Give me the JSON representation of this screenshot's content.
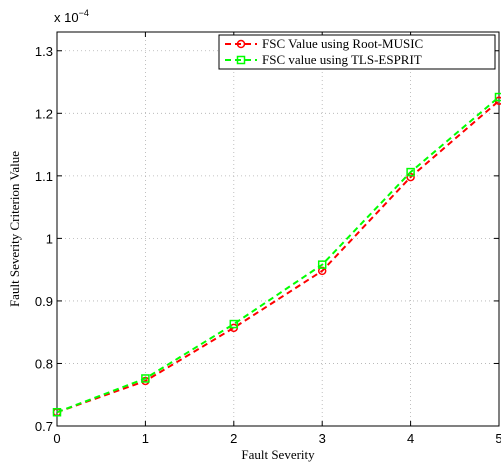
{
  "chart_data": {
    "type": "line",
    "xlabel": "Fault Severity",
    "ylabel": "Fault Severity Criterion Value",
    "y_multiplier_base": "x 10",
    "y_multiplier_exponent": "−4",
    "xlim": [
      0,
      5
    ],
    "ylim": [
      0.7,
      1.33
    ],
    "x_ticks": [
      "0",
      "1",
      "2",
      "3",
      "4",
      "5"
    ],
    "y_ticks": [
      "0.7",
      "0.8",
      "0.9",
      "1",
      "1.1",
      "1.2",
      "1.3"
    ],
    "grid": true,
    "legend_position": "top-right",
    "x": [
      0,
      1,
      2,
      3,
      4,
      5
    ],
    "series": [
      {
        "name": "FSC Value using Root-MUSIC",
        "values": [
          0.722,
          0.772,
          0.857,
          0.948,
          1.098,
          1.22
        ],
        "color": "#ff0000",
        "marker": "circle"
      },
      {
        "name": "FSC value using TLS-ESPRIT",
        "values": [
          0.722,
          0.776,
          0.863,
          0.958,
          1.106,
          1.226
        ],
        "color": "#00ff00",
        "marker": "square"
      }
    ]
  }
}
